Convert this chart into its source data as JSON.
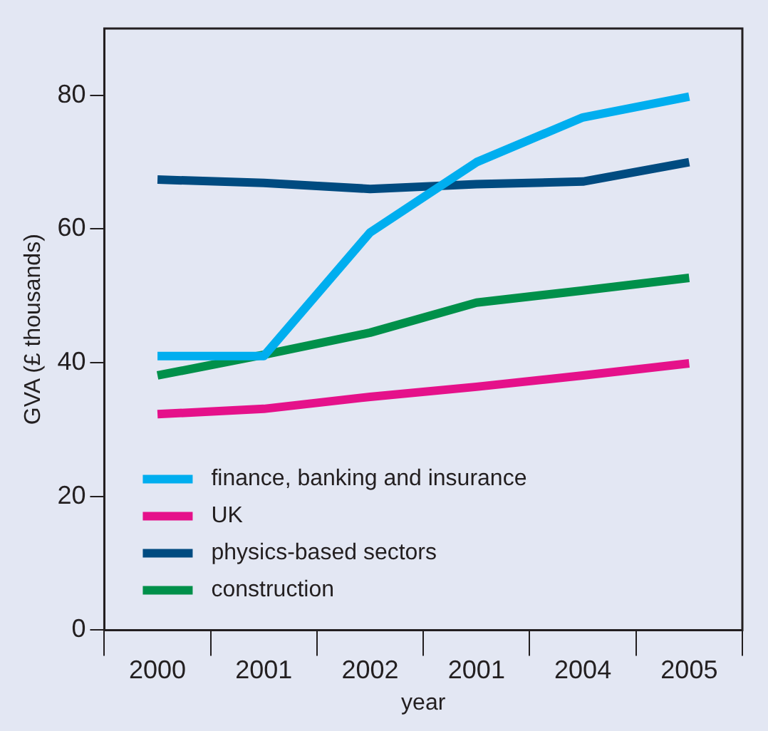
{
  "chart_data": {
    "type": "line",
    "xlabel": "year",
    "ylabel": "GVA (£ thousands)",
    "categories": [
      "2000",
      "2001",
      "2002",
      "2001",
      "2004",
      "2005"
    ],
    "series": [
      {
        "name": "finance, banking and insurance",
        "color": "#00aeef",
        "values": [
          41,
          41,
          59.5,
          70,
          76.7,
          79.8
        ]
      },
      {
        "name": "UK",
        "color": "#e5118a",
        "values": [
          32.3,
          33.1,
          34.9,
          36.4,
          38.1,
          39.9
        ]
      },
      {
        "name": "physics-based sectors",
        "color": "#004b80",
        "values": [
          67.4,
          66.9,
          66,
          66.7,
          67.1,
          70
        ]
      },
      {
        "name": "construction",
        "color": "#00904a",
        "values": [
          38.1,
          41.2,
          44.5,
          49,
          50.8,
          52.7
        ]
      }
    ],
    "ylim": [
      0,
      90
    ],
    "yticks": [
      0,
      20,
      40,
      60,
      80
    ],
    "grid": false,
    "legend": "bottom left",
    "marker": "none",
    "line_style": "solid"
  }
}
